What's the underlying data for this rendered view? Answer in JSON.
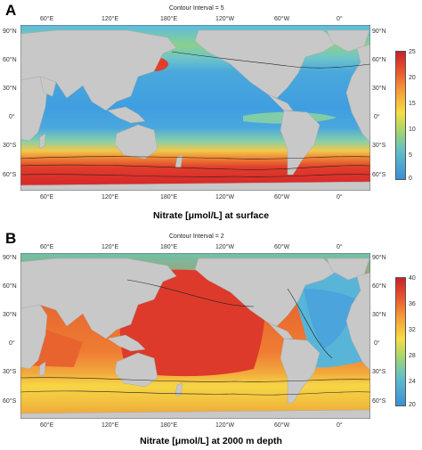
{
  "panels": [
    {
      "letter": "A",
      "contour_interval": "Contour Interval = 5",
      "caption": "Nitrate [μmol/L] at surface",
      "top_lon_labels": [
        "60°E",
        "120°E",
        "180°E",
        "120°W",
        "60°W",
        "0°"
      ],
      "bottom_lon_labels": [
        "60°E",
        "120°E",
        "180°E",
        "120°W",
        "60°W",
        "0°"
      ],
      "left_lat_labels": [
        "90°N",
        "60°N",
        "30°N",
        "0°",
        "30°S",
        "60°S"
      ],
      "right_lat_labels": [
        "90°N",
        "60°N",
        "30°N",
        "0°",
        "30°S",
        "60°S"
      ],
      "colorbar_ticks": [
        "25",
        "20",
        "15",
        "10",
        "5",
        "0"
      ]
    },
    {
      "letter": "B",
      "contour_interval": "Contour Interval = 2",
      "caption": "Nitrate [μmol/L] at 2000 m depth",
      "top_lon_labels": [
        "60°E",
        "120°E",
        "180°E",
        "120°W",
        "60°W",
        "0°"
      ],
      "bottom_lon_labels": [
        "60°E",
        "120°E",
        "180°E",
        "120°W",
        "60°W",
        "0°"
      ],
      "left_lat_labels": [
        "90°N",
        "60°N",
        "30°N",
        "0°",
        "30°S",
        "60°S"
      ],
      "right_lat_labels": [
        "90°N",
        "60°N",
        "30°N",
        "0°",
        "30°S",
        "60°S"
      ],
      "colorbar_ticks": [
        "40",
        "36",
        "32",
        "28",
        "24",
        "20"
      ]
    }
  ],
  "colors": {
    "land": "#c8c8c8",
    "scale_low": "#3a9ad9",
    "scale_mid": "#f5e642",
    "scale_high": "#d8282a"
  }
}
